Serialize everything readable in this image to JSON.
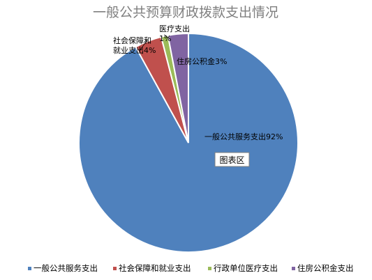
{
  "chart_data": {
    "type": "pie",
    "title": "一般公共预算财政拨款支出情况",
    "categories": [
      "一般公共服务支出",
      "社会保障和就业支出",
      "行政单位医疗支出",
      "住房公积金支出"
    ],
    "values": [
      92,
      4,
      1,
      3
    ],
    "colors": [
      "#4f81bd",
      "#c0504d",
      "#9bbb59",
      "#8064a2"
    ],
    "data_labels": [
      {
        "lines": [
          "一般公共服务支出92%"
        ]
      },
      {
        "lines": [
          "社会保障和",
          "就业支出4%"
        ]
      },
      {
        "lines": [
          "医疗支出",
          "1%"
        ]
      },
      {
        "lines": [
          "住房公积金3%"
        ]
      }
    ],
    "legend": {
      "position": "bottom"
    },
    "plot_area_tag": "图表区"
  }
}
